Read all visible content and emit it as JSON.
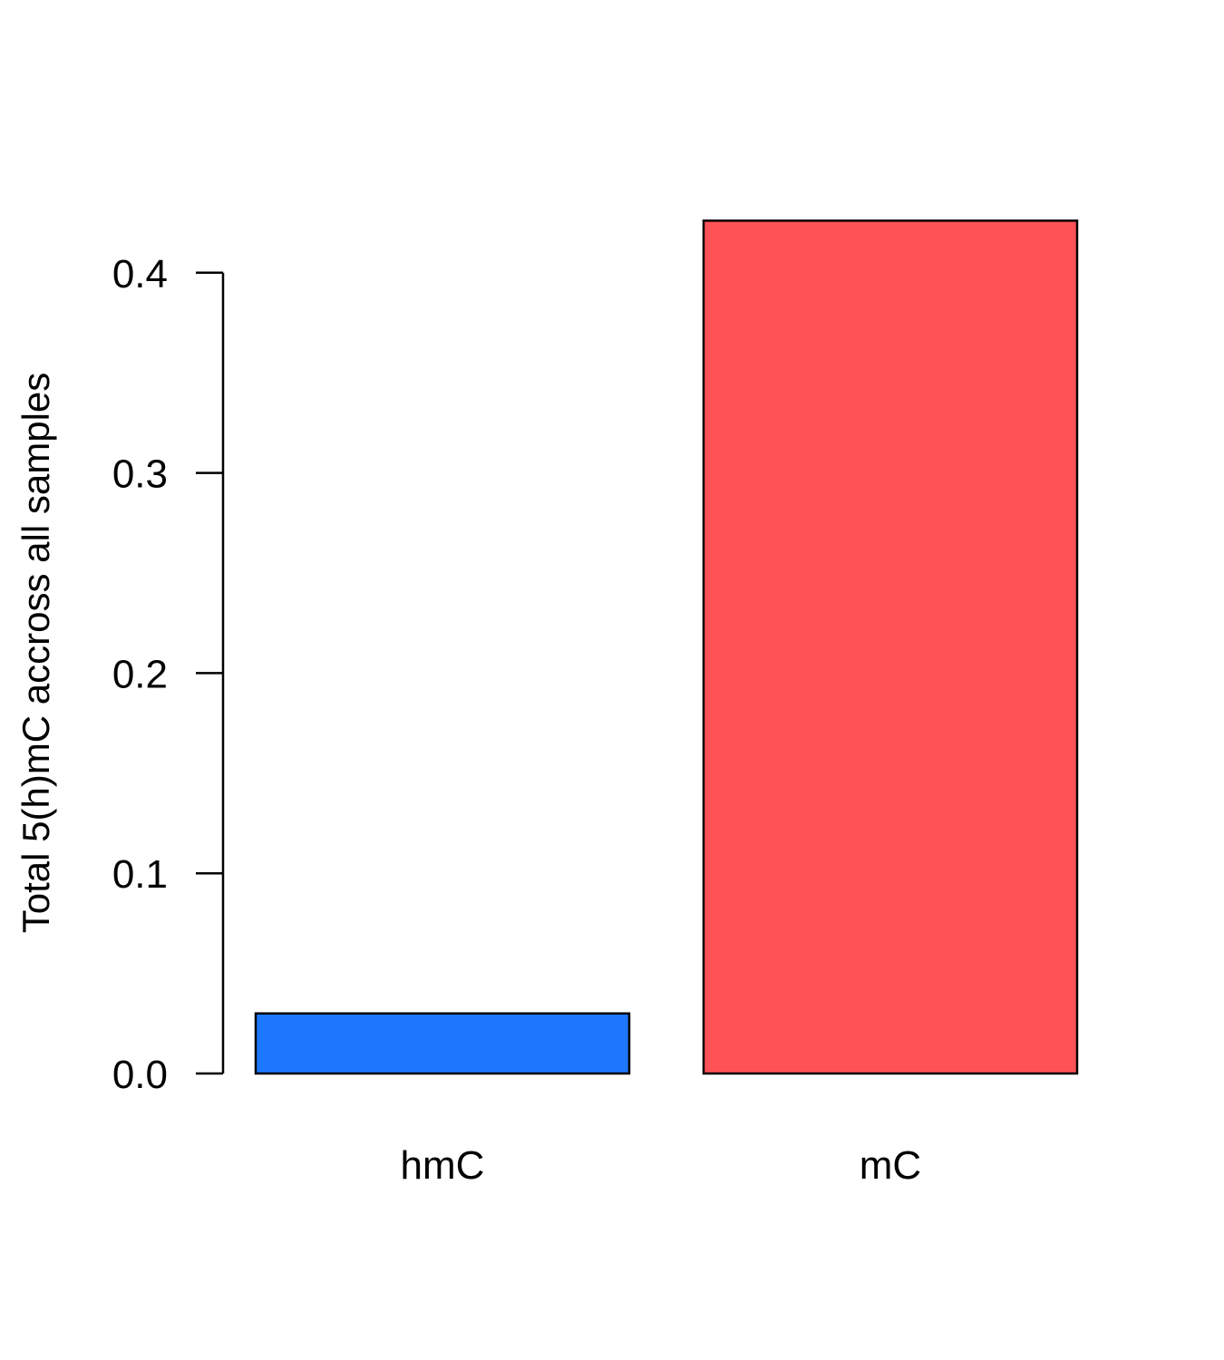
{
  "chart_data": {
    "type": "bar",
    "categories": [
      "hmC",
      "mC"
    ],
    "values": [
      0.03,
      0.426
    ],
    "colors": [
      "#1E78FF",
      "#FF5257"
    ],
    "title": "",
    "xlabel": "",
    "ylabel": "Total 5(h)mC accross all samples",
    "ylim": [
      0,
      0.4
    ],
    "yticks": [
      {
        "value": 0.0,
        "label": "0.0"
      },
      {
        "value": 0.1,
        "label": "0.1"
      },
      {
        "value": 0.2,
        "label": "0.2"
      },
      {
        "value": 0.3,
        "label": "0.3"
      },
      {
        "value": 0.4,
        "label": "0.4"
      }
    ],
    "grid": false,
    "legend": "none"
  }
}
